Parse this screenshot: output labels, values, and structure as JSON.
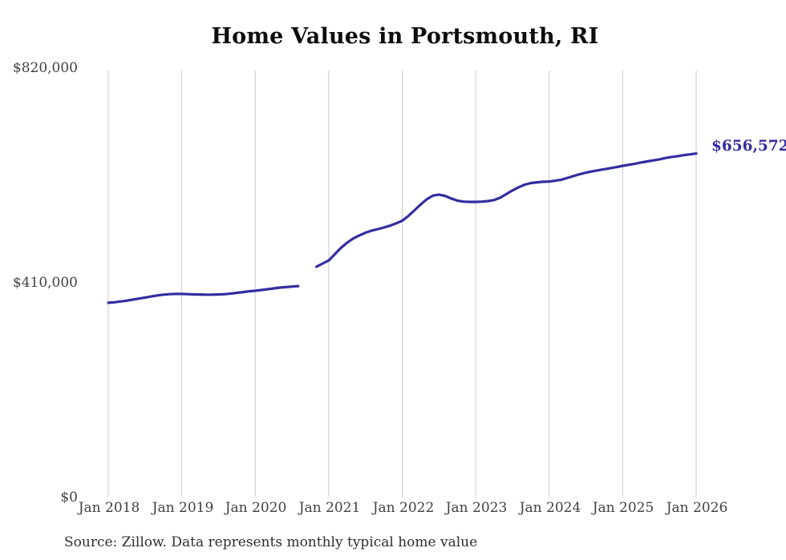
{
  "title": "Home Values in Portsmouth, RI",
  "source_note": "Source: Zillow. Data represents monthly typical home value",
  "end_label": "$656,572",
  "colors": {
    "line": "#332da1",
    "grid": "#c9c9c9",
    "axis_text": "#414141",
    "title_text": "#0d0d0d",
    "end_label_text": "#332da1",
    "background": "#ffffff"
  },
  "chart_data": {
    "type": "line",
    "title": "Home Values in Portsmouth, RI",
    "xlabel": "",
    "ylabel": "",
    "unit": "USD",
    "ylim": [
      0,
      820000
    ],
    "y_ticks": [
      0,
      410000,
      820000
    ],
    "y_tick_labels": [
      "$0",
      "$410,000",
      "$820,000"
    ],
    "x_tick_labels": [
      "Jan 2018",
      "Jan 2019",
      "Jan 2020",
      "Jan 2021",
      "Jan 2022",
      "Jan 2023",
      "Jan 2024",
      "Jan 2025",
      "Jan 2026"
    ],
    "x_start_month": "2018-01",
    "x_end_month": "2026-01",
    "months_per_tick": 12,
    "grid": "vertical-only",
    "legend": "none",
    "gap_note": "no data Sep 2020 - Oct 2020",
    "final_value": 656572,
    "series": [
      {
        "name": "Typical home value",
        "values": [
          371000,
          372000,
          373500,
          375000,
          377000,
          379000,
          381000,
          383000,
          385000,
          386500,
          387500,
          388000,
          388000,
          387500,
          387000,
          386800,
          386500,
          386500,
          387000,
          387500,
          388500,
          390000,
          391500,
          393000,
          394000,
          395500,
          397000,
          398500,
          400000,
          401000,
          402000,
          403000,
          null,
          null,
          440000,
          446000,
          452000,
          464000,
          476000,
          486000,
          494000,
          500000,
          505000,
          509000,
          512000,
          515000,
          518500,
          523000,
          528000,
          537000,
          548000,
          559000,
          569000,
          576000,
          578000,
          575500,
          570500,
          566500,
          564500,
          564000,
          564000,
          564500,
          565500,
          567500,
          572000,
          579000,
          586000,
          592000,
          597000,
          600000,
          601500,
          602500,
          603000,
          604500,
          606500,
          610000,
          613500,
          617000,
          620000,
          622500,
          624500,
          626500,
          628500,
          630500,
          633000,
          635000,
          637000,
          639500,
          641500,
          643500,
          645500,
          648000,
          650000,
          651500,
          653500,
          655000,
          656572
        ]
      }
    ]
  }
}
